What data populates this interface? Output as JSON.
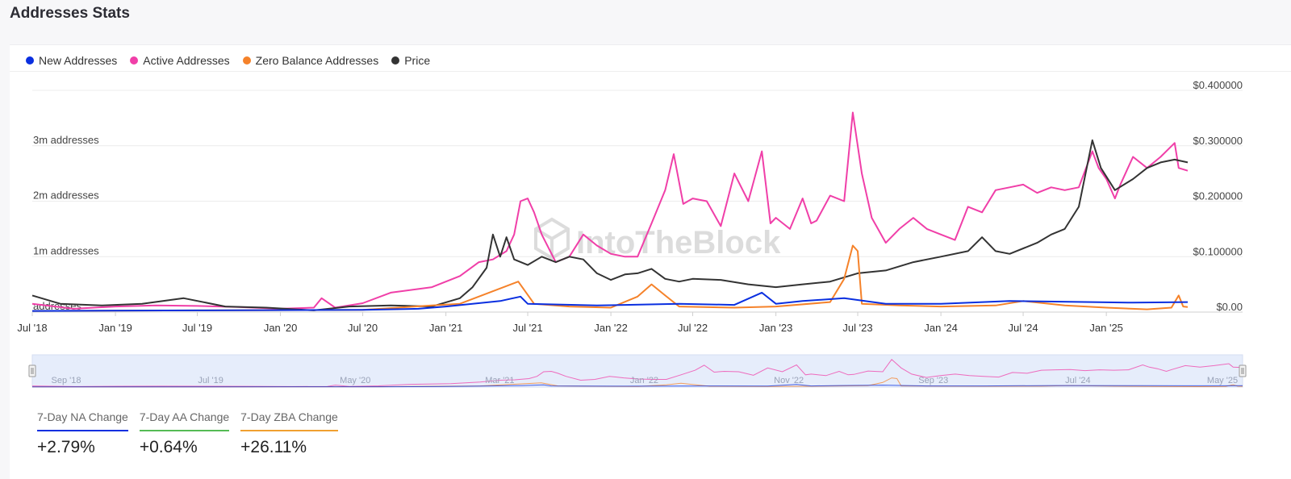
{
  "page": {
    "title": "Addresses Stats"
  },
  "legend": [
    {
      "label": "New Addresses",
      "color": "#0a2fe0"
    },
    {
      "label": "Active Addresses",
      "color": "#f03fa8"
    },
    {
      "label": "Zero Balance Addresses",
      "color": "#f5822a"
    },
    {
      "label": "Price",
      "color": "#333333"
    }
  ],
  "watermark": "IntoTheBlock",
  "navigator": {
    "labels": [
      "Sep '18",
      "Jul '19",
      "May '20",
      "Mar '21",
      "Jan '22",
      "Nov '22",
      "Sep '23",
      "Jul '24",
      "May '25"
    ]
  },
  "stats": [
    {
      "label": "7-Day NA Change",
      "value": "+2.79%",
      "color": "#0a2fe0"
    },
    {
      "label": "7-Day AA Change",
      "value": "+0.64%",
      "color": "#55bb55"
    },
    {
      "label": "7-Day ZBA Change",
      "value": "+26.11%",
      "color": "#f0a030"
    }
  ],
  "chart_data": {
    "type": "line",
    "x_type": "date",
    "x_range": [
      "2018-07-01",
      "2025-06-30"
    ],
    "x_tick_labels": [
      "Jul '18",
      "Jan '19",
      "Jul '19",
      "Jan '20",
      "Jul '20",
      "Jan '21",
      "Jul '21",
      "Jan '22",
      "Jul '22",
      "Jan '23",
      "Jul '23",
      "Jan '24",
      "Jul '24",
      "Jan '25"
    ],
    "y_left": {
      "range": [
        0,
        4000000
      ],
      "ticks": [
        0,
        1000000,
        2000000,
        3000000
      ],
      "tick_labels": [
        "addresses",
        "1m addresses",
        "2m addresses",
        "3m addresses"
      ]
    },
    "y_right": {
      "range": [
        0,
        0.4
      ],
      "ticks": [
        0,
        0.1,
        0.2,
        0.3,
        0.4
      ],
      "tick_labels": [
        "$0.00",
        "$0.100000",
        "$0.200000",
        "$0.300000",
        "$0.400000"
      ]
    },
    "grid": true,
    "legend_position": "top-left",
    "series": [
      {
        "name": "Active Addresses",
        "axis": "left",
        "color": "#f03fa8",
        "points": [
          [
            "2018-07-01",
            150000
          ],
          [
            "2018-10-01",
            60000
          ],
          [
            "2019-01-01",
            100000
          ],
          [
            "2019-04-01",
            120000
          ],
          [
            "2019-07-01",
            110000
          ],
          [
            "2019-10-01",
            90000
          ],
          [
            "2020-01-01",
            60000
          ],
          [
            "2020-03-15",
            80000
          ],
          [
            "2020-04-01",
            250000
          ],
          [
            "2020-05-01",
            80000
          ],
          [
            "2020-07-01",
            160000
          ],
          [
            "2020-09-01",
            350000
          ],
          [
            "2020-12-01",
            450000
          ],
          [
            "2021-02-01",
            650000
          ],
          [
            "2021-03-15",
            900000
          ],
          [
            "2021-04-15",
            950000
          ],
          [
            "2021-05-15",
            1100000
          ],
          [
            "2021-06-01",
            1400000
          ],
          [
            "2021-06-15",
            2000000
          ],
          [
            "2021-07-01",
            2050000
          ],
          [
            "2021-07-15",
            1800000
          ],
          [
            "2021-08-01",
            1400000
          ],
          [
            "2021-09-01",
            900000
          ],
          [
            "2021-10-01",
            1000000
          ],
          [
            "2021-11-01",
            1400000
          ],
          [
            "2021-12-01",
            1200000
          ],
          [
            "2022-01-01",
            1050000
          ],
          [
            "2022-02-01",
            1000000
          ],
          [
            "2022-03-01",
            1000000
          ],
          [
            "2022-04-01",
            1600000
          ],
          [
            "2022-05-01",
            2200000
          ],
          [
            "2022-05-20",
            2850000
          ],
          [
            "2022-06-10",
            1950000
          ],
          [
            "2022-07-01",
            2050000
          ],
          [
            "2022-08-01",
            2000000
          ],
          [
            "2022-09-01",
            1550000
          ],
          [
            "2022-10-01",
            2500000
          ],
          [
            "2022-11-01",
            2000000
          ],
          [
            "2022-12-01",
            2900000
          ],
          [
            "2022-12-20",
            1600000
          ],
          [
            "2023-01-01",
            1700000
          ],
          [
            "2023-02-01",
            1500000
          ],
          [
            "2023-03-01",
            2050000
          ],
          [
            "2023-03-20",
            1600000
          ],
          [
            "2023-04-01",
            1650000
          ],
          [
            "2023-05-01",
            2100000
          ],
          [
            "2023-06-01",
            2000000
          ],
          [
            "2023-06-20",
            3600000
          ],
          [
            "2023-07-10",
            2500000
          ],
          [
            "2023-08-01",
            1700000
          ],
          [
            "2023-09-01",
            1250000
          ],
          [
            "2023-10-01",
            1500000
          ],
          [
            "2023-11-01",
            1700000
          ],
          [
            "2023-12-01",
            1500000
          ],
          [
            "2024-01-01",
            1400000
          ],
          [
            "2024-02-01",
            1300000
          ],
          [
            "2024-03-01",
            1900000
          ],
          [
            "2024-04-01",
            1800000
          ],
          [
            "2024-05-01",
            2200000
          ],
          [
            "2024-06-01",
            2250000
          ],
          [
            "2024-07-01",
            2300000
          ],
          [
            "2024-08-01",
            2150000
          ],
          [
            "2024-09-01",
            2250000
          ],
          [
            "2024-10-01",
            2200000
          ],
          [
            "2024-11-01",
            2250000
          ],
          [
            "2024-12-01",
            2900000
          ],
          [
            "2024-12-15",
            2600000
          ],
          [
            "2025-01-01",
            2400000
          ],
          [
            "2025-01-20",
            2050000
          ],
          [
            "2025-02-01",
            2300000
          ],
          [
            "2025-03-01",
            2800000
          ],
          [
            "2025-04-01",
            2600000
          ],
          [
            "2025-05-01",
            2800000
          ],
          [
            "2025-06-01",
            3050000
          ],
          [
            "2025-06-10",
            2600000
          ],
          [
            "2025-06-30",
            2550000
          ]
        ]
      },
      {
        "name": "Price",
        "axis": "right",
        "color": "#333333",
        "points": [
          [
            "2018-07-01",
            0.03
          ],
          [
            "2018-09-01",
            0.015
          ],
          [
            "2018-12-01",
            0.012
          ],
          [
            "2019-03-01",
            0.015
          ],
          [
            "2019-06-01",
            0.025
          ],
          [
            "2019-09-01",
            0.01
          ],
          [
            "2019-12-01",
            0.008
          ],
          [
            "2020-03-15",
            0.003
          ],
          [
            "2020-06-01",
            0.01
          ],
          [
            "2020-09-01",
            0.012
          ],
          [
            "2020-12-01",
            0.01
          ],
          [
            "2021-02-01",
            0.025
          ],
          [
            "2021-03-01",
            0.045
          ],
          [
            "2021-04-01",
            0.08
          ],
          [
            "2021-04-15",
            0.14
          ],
          [
            "2021-05-01",
            0.1
          ],
          [
            "2021-05-15",
            0.135
          ],
          [
            "2021-06-01",
            0.095
          ],
          [
            "2021-07-01",
            0.085
          ],
          [
            "2021-08-01",
            0.1
          ],
          [
            "2021-09-01",
            0.09
          ],
          [
            "2021-10-01",
            0.1
          ],
          [
            "2021-11-01",
            0.095
          ],
          [
            "2021-12-01",
            0.07
          ],
          [
            "2022-01-01",
            0.058
          ],
          [
            "2022-02-01",
            0.068
          ],
          [
            "2022-03-01",
            0.07
          ],
          [
            "2022-04-01",
            0.078
          ],
          [
            "2022-05-01",
            0.06
          ],
          [
            "2022-06-01",
            0.055
          ],
          [
            "2022-07-01",
            0.06
          ],
          [
            "2022-09-01",
            0.058
          ],
          [
            "2022-11-01",
            0.05
          ],
          [
            "2023-01-01",
            0.045
          ],
          [
            "2023-03-01",
            0.05
          ],
          [
            "2023-05-01",
            0.055
          ],
          [
            "2023-07-01",
            0.07
          ],
          [
            "2023-09-01",
            0.075
          ],
          [
            "2023-11-01",
            0.09
          ],
          [
            "2024-01-01",
            0.1
          ],
          [
            "2024-03-01",
            0.11
          ],
          [
            "2024-04-01",
            0.135
          ],
          [
            "2024-05-01",
            0.11
          ],
          [
            "2024-06-01",
            0.105
          ],
          [
            "2024-08-01",
            0.125
          ],
          [
            "2024-09-01",
            0.14
          ],
          [
            "2024-10-01",
            0.15
          ],
          [
            "2024-11-01",
            0.19
          ],
          [
            "2024-12-01",
            0.31
          ],
          [
            "2024-12-20",
            0.26
          ],
          [
            "2025-01-20",
            0.22
          ],
          [
            "2025-03-01",
            0.24
          ],
          [
            "2025-04-01",
            0.26
          ],
          [
            "2025-05-01",
            0.27
          ],
          [
            "2025-06-01",
            0.275
          ],
          [
            "2025-06-30",
            0.27
          ]
        ]
      },
      {
        "name": "Zero Balance Addresses",
        "axis": "left",
        "color": "#f5822a",
        "points": [
          [
            "2018-07-01",
            20000
          ],
          [
            "2019-07-01",
            30000
          ],
          [
            "2020-07-01",
            40000
          ],
          [
            "2020-12-01",
            120000
          ],
          [
            "2021-02-01",
            150000
          ],
          [
            "2021-06-10",
            550000
          ],
          [
            "2021-06-25",
            380000
          ],
          [
            "2021-07-15",
            150000
          ],
          [
            "2021-10-01",
            100000
          ],
          [
            "2022-01-01",
            80000
          ],
          [
            "2022-03-01",
            280000
          ],
          [
            "2022-04-01",
            500000
          ],
          [
            "2022-05-01",
            300000
          ],
          [
            "2022-06-01",
            100000
          ],
          [
            "2022-10-01",
            80000
          ],
          [
            "2023-01-01",
            100000
          ],
          [
            "2023-05-01",
            180000
          ],
          [
            "2023-06-01",
            600000
          ],
          [
            "2023-06-20",
            1200000
          ],
          [
            "2023-07-01",
            1100000
          ],
          [
            "2023-07-10",
            150000
          ],
          [
            "2023-10-01",
            120000
          ],
          [
            "2024-01-01",
            100000
          ],
          [
            "2024-05-01",
            120000
          ],
          [
            "2024-07-01",
            200000
          ],
          [
            "2024-10-01",
            120000
          ],
          [
            "2025-01-01",
            80000
          ],
          [
            "2025-04-01",
            50000
          ],
          [
            "2025-05-25",
            80000
          ],
          [
            "2025-06-10",
            300000
          ],
          [
            "2025-06-20",
            100000
          ],
          [
            "2025-06-30",
            90000
          ]
        ]
      },
      {
        "name": "New Addresses",
        "axis": "left",
        "color": "#0a2fe0",
        "points": [
          [
            "2018-07-01",
            20000
          ],
          [
            "2019-07-01",
            30000
          ],
          [
            "2020-07-01",
            40000
          ],
          [
            "2020-11-01",
            60000
          ],
          [
            "2021-01-01",
            100000
          ],
          [
            "2021-05-01",
            200000
          ],
          [
            "2021-06-15",
            280000
          ],
          [
            "2021-07-01",
            150000
          ],
          [
            "2021-12-01",
            120000
          ],
          [
            "2022-06-01",
            150000
          ],
          [
            "2022-10-01",
            130000
          ],
          [
            "2022-12-01",
            350000
          ],
          [
            "2023-01-01",
            150000
          ],
          [
            "2023-03-01",
            200000
          ],
          [
            "2023-06-01",
            250000
          ],
          [
            "2023-09-01",
            150000
          ],
          [
            "2024-01-01",
            150000
          ],
          [
            "2024-06-01",
            200000
          ],
          [
            "2024-12-01",
            180000
          ],
          [
            "2025-03-01",
            170000
          ],
          [
            "2025-06-30",
            180000
          ]
        ]
      }
    ]
  }
}
